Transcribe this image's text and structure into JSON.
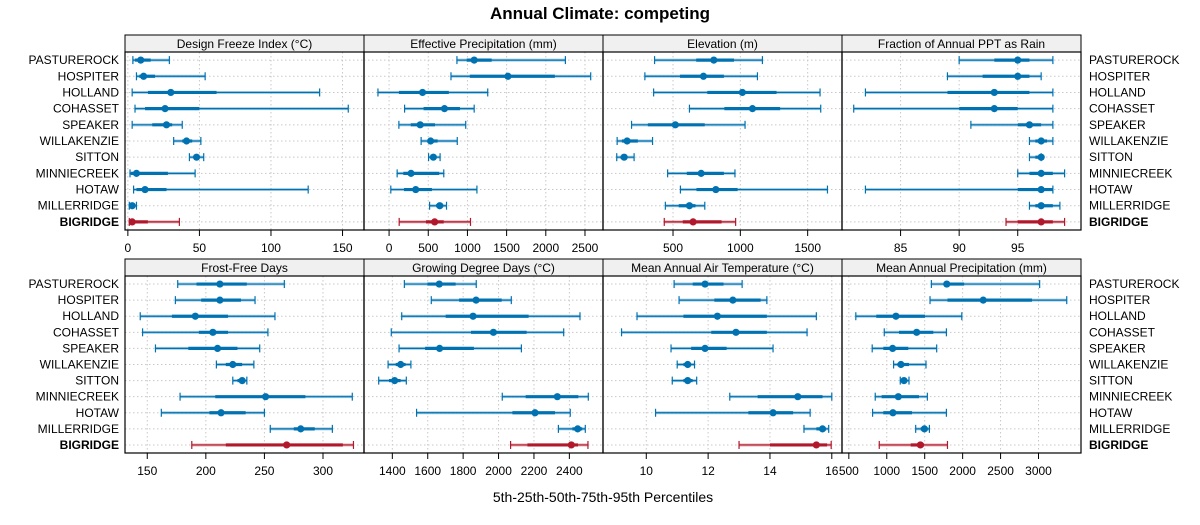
{
  "chart_data": {
    "type": "dotplot-percentiles",
    "title": "Annual Climate: competing",
    "xlabel": "5th-25th-50th-75th-95th Percentiles",
    "ylabel": "",
    "percentiles": [
      "5th",
      "25th",
      "50th",
      "75th",
      "95th"
    ],
    "categories": [
      "PASTUREROCK",
      "HOSPITER",
      "HOLLAND",
      "COHASSET",
      "SPEAKER",
      "WILLAKENZIE",
      "SITTON",
      "MINNIECREEK",
      "HOTAW",
      "MILLERRIDGE",
      "BIGRIDGE"
    ],
    "highlight_category": "BIGRIDGE",
    "colors": {
      "series": "#0072B2",
      "highlight": "#B2182B",
      "strip": "#f0f0f0",
      "grid": "#c8c8c8"
    },
    "grid": true,
    "panels": [
      {
        "title": "Design Freeze Index (°C)",
        "xlim": [
          -2,
          165
        ],
        "ticks": [
          0,
          50,
          100,
          150
        ],
        "values": {
          "PASTUREROCK": [
            3.5,
            5,
            9,
            16,
            29
          ],
          "HOSPITER": [
            6,
            8,
            11,
            19,
            54
          ],
          "HOLLAND": [
            3,
            14,
            30,
            62,
            134
          ],
          "COHASSET": [
            5,
            12,
            26,
            50,
            154
          ],
          "SPEAKER": [
            3,
            17,
            27,
            31,
            38
          ],
          "WILLAKENZIE": [
            32,
            38,
            41,
            45,
            51
          ],
          "SITTON": [
            43,
            46,
            48,
            50,
            53
          ],
          "MINNIECREEK": [
            1.5,
            2,
            6,
            28,
            47
          ],
          "HOTAW": [
            4,
            6,
            12,
            27,
            126
          ],
          "MILLERRIDGE": [
            1,
            2,
            3,
            5,
            6
          ],
          "BIGRIDGE": [
            1,
            2,
            3,
            14,
            36
          ]
        }
      },
      {
        "title": "Effective Precipitation (mm)",
        "xlim": [
          -320,
          2730
        ],
        "ticks": [
          0,
          500,
          1000,
          1500,
          2000,
          2500
        ],
        "values": {
          "PASTUREROCK": [
            866,
            990,
            1086,
            1310,
            2250
          ],
          "HOSPITER": [
            790,
            1030,
            1517,
            2116,
            2573
          ],
          "HOLLAND": [
            -142,
            125,
            427,
            763,
            1259
          ],
          "COHASSET": [
            198,
            440,
            707,
            905,
            1086
          ],
          "SPEAKER": [
            125,
            276,
            397,
            586,
            978
          ],
          "WILLAKENZIE": [
            409,
            491,
            530,
            620,
            870
          ],
          "SITTON": [
            504,
            540,
            565,
            600,
            651
          ],
          "MINNIECREEK": [
            103,
            181,
            280,
            640,
            698
          ],
          "HOTAW": [
            22,
            190,
            340,
            547,
            1121
          ],
          "MILLERRIDGE": [
            517,
            600,
            647,
            690,
            733
          ],
          "BIGRIDGE": [
            129,
            470,
            582,
            698,
            1039
          ]
        }
      },
      {
        "title": "Elevation (m)",
        "xlim": [
          -20,
          1755
        ],
        "ticks": [
          500,
          1000,
          1500
        ],
        "values": {
          "PASTUREROCK": [
            363,
            672,
            803,
            953,
            1164
          ],
          "HOSPITER": [
            291,
            552,
            726,
            878,
            1127
          ],
          "HOLLAND": [
            356,
            754,
            1015,
            1269,
            1592
          ],
          "COHASSET": [
            622,
            881,
            1090,
            1296,
            1597
          ],
          "SPEAKER": [
            192,
            313,
            517,
            736,
            1035
          ],
          "WILLAKENZIE": [
            85,
            120,
            159,
            239,
            348
          ],
          "SITTON": [
            82,
            110,
            137,
            160,
            211
          ],
          "MINNIECREEK": [
            460,
            602,
            709,
            878,
            960
          ],
          "HOTAW": [
            555,
            674,
            818,
            980,
            1647
          ],
          "MILLERRIDGE": [
            443,
            542,
            622,
            667,
            736
          ],
          "BIGRIDGE": [
            435,
            572,
            649,
            861,
            965
          ]
        }
      },
      {
        "title": "Fraction of Annual PPT as Rain",
        "xlim": [
          80.0,
          100.4
        ],
        "ticks": [
          85,
          90,
          95
        ],
        "values": {
          "PASTUREROCK": [
            90,
            93,
            95,
            96,
            98
          ],
          "HOSPITER": [
            89,
            92,
            95,
            96,
            97
          ],
          "HOLLAND": [
            82,
            89,
            93,
            96,
            98
          ],
          "COHASSET": [
            81,
            90,
            93,
            95,
            98
          ],
          "SPEAKER": [
            91,
            95,
            96,
            97,
            98
          ],
          "WILLAKENZIE": [
            96,
            96.5,
            97,
            97.5,
            98
          ],
          "SITTON": [
            96,
            96.5,
            97,
            97,
            97
          ],
          "MINNIECREEK": [
            95,
            96,
            97,
            98,
            99
          ],
          "HOTAW": [
            82,
            95,
            97,
            98,
            98
          ],
          "MILLERRIDGE": [
            96,
            96.5,
            97,
            98,
            98.6
          ],
          "BIGRIDGE": [
            94,
            95,
            97,
            98,
            99
          ]
        }
      },
      {
        "title": "Frost-Free Days",
        "xlim": [
          131,
          335
        ],
        "ticks": [
          150,
          200,
          250,
          300
        ],
        "values": {
          "PASTUREROCK": [
            176,
            192,
            212,
            235,
            267
          ],
          "HOSPITER": [
            174,
            196,
            212,
            230,
            242
          ],
          "HOLLAND": [
            144,
            171,
            191,
            219,
            259
          ],
          "COHASSET": [
            146,
            194,
            206,
            219,
            253
          ],
          "SPEAKER": [
            157,
            185,
            210,
            227,
            246
          ],
          "WILLAKENZIE": [
            209,
            217,
            223,
            231,
            241
          ],
          "SITTON": [
            223,
            227,
            231,
            233,
            235
          ],
          "MINNIECREEK": [
            178,
            208,
            251,
            285,
            325
          ],
          "HOTAW": [
            162,
            203,
            213,
            234,
            250
          ],
          "MILLERRIDGE": [
            255,
            275,
            281,
            293,
            308
          ],
          "BIGRIDGE": [
            188,
            217,
            269,
            317,
            326
          ]
        }
      },
      {
        "title": "Growing Degree Days (°C)",
        "xlim": [
          1240,
          2590
        ],
        "ticks": [
          1400,
          1600,
          1800,
          2000,
          2200,
          2400
        ],
        "values": {
          "PASTUREROCK": [
            1468,
            1598,
            1665,
            1758,
            1874
          ],
          "HOSPITER": [
            1620,
            1777,
            1873,
            2018,
            2072
          ],
          "HOLLAND": [
            1453,
            1701,
            1856,
            2170,
            2460
          ],
          "COHASSET": [
            1394,
            1844,
            1971,
            2159,
            2368
          ],
          "SPEAKER": [
            1438,
            1585,
            1667,
            1861,
            2129
          ],
          "WILLAKENZIE": [
            1376,
            1419,
            1447,
            1475,
            1505
          ],
          "SITTON": [
            1323,
            1381,
            1413,
            1447,
            1479
          ],
          "MINNIECREEK": [
            2021,
            2153,
            2332,
            2451,
            2507
          ],
          "HOTAW": [
            1537,
            2078,
            2206,
            2319,
            2405
          ],
          "MILLERRIDGE": [
            2338,
            2417,
            2447,
            2473,
            2490
          ],
          "BIGRIDGE": [
            2068,
            2163,
            2411,
            2449,
            2505
          ]
        }
      },
      {
        "title": "Mean Annual Air Temperature (°C)",
        "xlim": [
          8.6,
          16.33
        ],
        "ticks": [
          10,
          12,
          14,
          16
        ],
        "values": {
          "PASTUREROCK": [
            10.9,
            11.5,
            11.9,
            12.5,
            13.1
          ],
          "HOSPITER": [
            11.06,
            12.2,
            12.8,
            13.7,
            13.9
          ],
          "HOLLAND": [
            9.7,
            11.2,
            12.3,
            13.9,
            15.5
          ],
          "COHASSET": [
            9.2,
            12.1,
            12.9,
            13.9,
            15.2
          ],
          "SPEAKER": [
            10.8,
            11.45,
            11.9,
            12.6,
            14.1
          ],
          "WILLAKENZIE": [
            11.0,
            11.2,
            11.34,
            11.45,
            11.56
          ],
          "SITTON": [
            10.84,
            11.2,
            11.34,
            11.5,
            11.63
          ],
          "MINNIECREEK": [
            12.7,
            13.6,
            14.9,
            15.7,
            16.0
          ],
          "HOTAW": [
            10.3,
            13.3,
            14.1,
            14.75,
            15.3
          ],
          "MILLERRIDGE": [
            15.1,
            15.5,
            15.7,
            15.8,
            15.9
          ],
          "BIGRIDGE": [
            13.0,
            14.0,
            15.5,
            15.85,
            15.98
          ]
        }
      },
      {
        "title": "Mean Annual Precipitation (mm)",
        "xlim": [
          410,
          3560
        ],
        "ticks": [
          500,
          1000,
          1500,
          2000,
          2500,
          3000
        ],
        "values": {
          "PASTUREROCK": [
            1588,
            1747,
            1791,
            2020,
            3015
          ],
          "HOSPITER": [
            1570,
            1800,
            2271,
            2914,
            3372
          ],
          "HOLLAND": [
            592,
            861,
            1121,
            1504,
            1989
          ],
          "COHASSET": [
            967,
            1161,
            1394,
            1614,
            1786
          ],
          "SPEAKER": [
            808,
            954,
            1077,
            1284,
            1658
          ],
          "WILLAKENZIE": [
            1090,
            1139,
            1187,
            1293,
            1517
          ],
          "SITTON": [
            1178,
            1210,
            1227,
            1245,
            1293
          ],
          "MINNIECREEK": [
            848,
            932,
            1152,
            1425,
            1535
          ],
          "HOTAW": [
            813,
            954,
            1081,
            1333,
            1786
          ],
          "MILLERRIDGE": [
            1381,
            1447,
            1496,
            1535,
            1562
          ],
          "BIGRIDGE": [
            901,
            1315,
            1443,
            1491,
            1800
          ]
        }
      }
    ]
  }
}
